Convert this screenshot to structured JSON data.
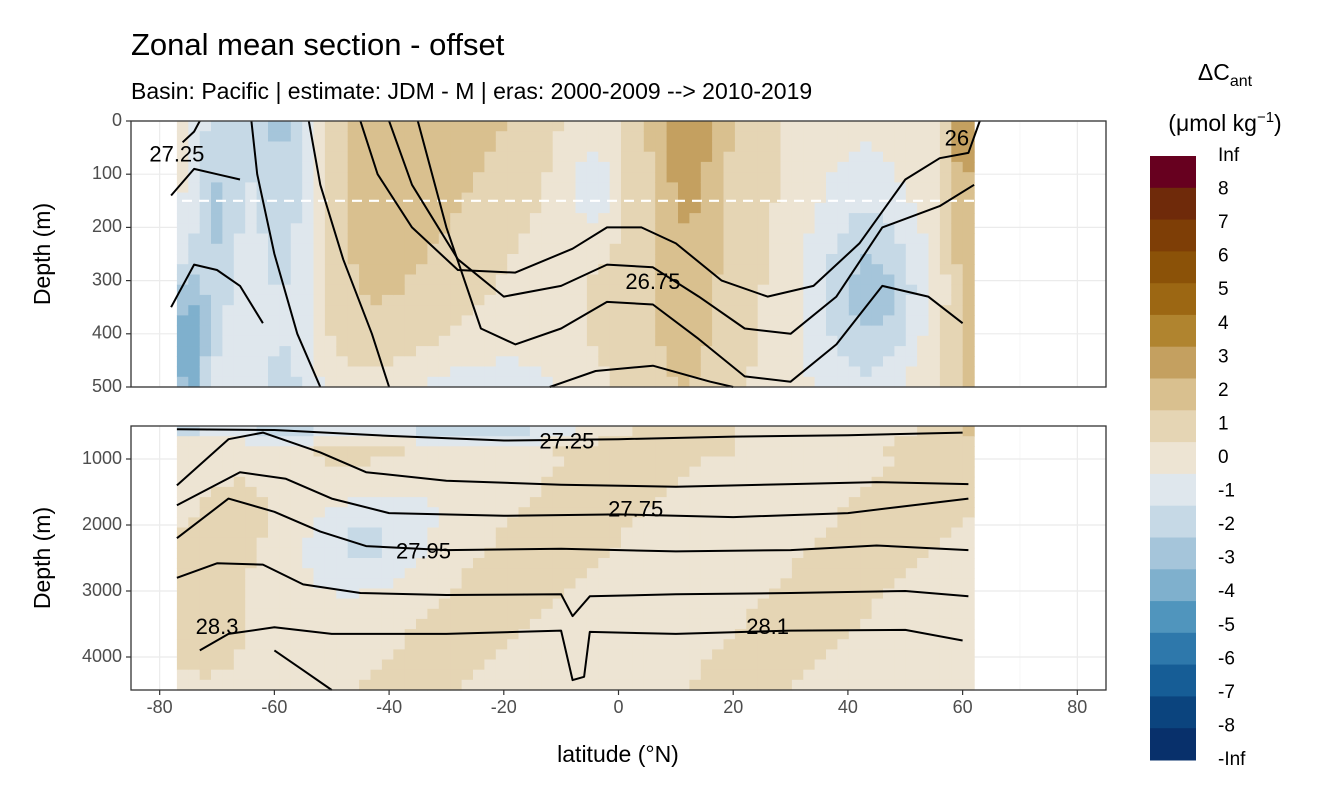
{
  "chart_data": {
    "type": "heatmap",
    "title": "Zonal mean section - offset",
    "subtitle": "Basin: Pacific | estimate: JDM - M | eras: 2000-2009 --> 2010-2019",
    "xlabel": "latitude (°N)",
    "ylabel": "Depth (m)",
    "xlim": [
      -85,
      85
    ],
    "x_ticks": [
      "-80",
      "-60",
      "-40",
      "-20",
      "0",
      "20",
      "40",
      "60",
      "80"
    ],
    "x_tick_values": [
      -80,
      -60,
      -40,
      -20,
      0,
      20,
      40,
      60,
      80
    ],
    "data_lat_range": [
      -77,
      62
    ],
    "reference_line_depth": 150,
    "panels": [
      {
        "name": "upper",
        "ylim": [
          0,
          500
        ],
        "y_ticks": [
          "0",
          "100",
          "200",
          "300",
          "400",
          "500"
        ],
        "y_tick_values": [
          0,
          100,
          200,
          300,
          400,
          500
        ],
        "isopycnal_labels": [
          {
            "text": "27.25",
            "lat": -77,
            "depth": 65
          },
          {
            "text": "26.75",
            "lat": 6,
            "depth": 305
          },
          {
            "text": "26",
            "lat": 59,
            "depth": 35
          }
        ]
      },
      {
        "name": "lower",
        "ylim": [
          500,
          4500
        ],
        "y_ticks": [
          "1000",
          "2000",
          "3000",
          "4000"
        ],
        "y_tick_values": [
          1000,
          2000,
          3000,
          4000
        ],
        "isopycnal_labels": [
          {
            "text": "27.25",
            "lat": -9,
            "depth": 750
          },
          {
            "text": "27.75",
            "lat": 3,
            "depth": 1780
          },
          {
            "text": "27.95",
            "lat": -34,
            "depth": 2420
          },
          {
            "text": "28.3",
            "lat": -70,
            "depth": 3560
          },
          {
            "text": "28.1",
            "lat": 26,
            "depth": 3560
          }
        ]
      }
    ],
    "legend": {
      "title_main": "ΔC",
      "title_sub": "ant",
      "units": "(μmol kg",
      "units_sup": "−1",
      "units_close": ")",
      "labels": [
        "Inf",
        "8",
        "7",
        "6",
        "5",
        "4",
        "3",
        "2",
        "1",
        "0",
        "-1",
        "-2",
        "-3",
        "-4",
        "-5",
        "-6",
        "-7",
        "-8",
        "-Inf"
      ],
      "colors": [
        "#67001f",
        "#6f2a0a",
        "#7e3e06",
        "#8b5208",
        "#9c6713",
        "#b0842f",
        "#c4a060",
        "#d9c08f",
        "#e5d5b4",
        "#ede4d3",
        "#dfe7ed",
        "#c6d9e6",
        "#a5c5da",
        "#7fb0cd",
        "#5095bd",
        "#2e78ab",
        "#165d96",
        "#0b447e",
        "#08306b"
      ]
    }
  }
}
